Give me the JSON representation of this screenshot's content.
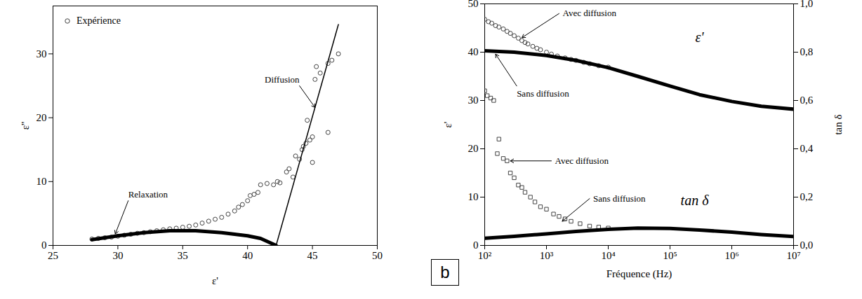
{
  "chart_data": [
    {
      "type": "scatter",
      "x_label": "ε'",
      "y_label": "ε''",
      "xlim": [
        25,
        50
      ],
      "xticks": [
        25,
        30,
        35,
        40,
        45,
        50
      ],
      "ylim": [
        0,
        37.5
      ],
      "yticks": [
        0,
        10,
        20,
        30
      ],
      "legend": "upper left",
      "series": [
        {
          "name": "Expérience",
          "type": "scatter",
          "marker": "circle",
          "color": "#444444",
          "x": [
            28,
            28.5,
            29,
            29.5,
            30,
            30.5,
            31,
            31.5,
            32,
            32.5,
            33,
            33.5,
            34,
            34.5,
            35,
            35.5,
            36,
            36.5,
            37,
            37.5,
            38,
            38.5,
            39,
            39.3,
            39.6,
            40,
            40.2,
            40.5,
            40.8,
            41,
            41.5,
            42,
            42.3,
            42.5,
            43,
            43.2,
            43.5,
            43.7,
            44,
            44.2,
            44.3,
            44.5,
            44.6,
            44.8,
            45,
            45,
            45.2,
            45.3,
            45.6,
            46.2,
            46.2,
            46.5,
            47
          ],
          "values": [
            1.0,
            1.1,
            1.2,
            1.3,
            1.45,
            1.6,
            1.75,
            1.9,
            2.0,
            2.15,
            2.3,
            2.45,
            2.6,
            2.7,
            2.85,
            3.0,
            3.2,
            3.5,
            3.8,
            4.1,
            4.4,
            4.9,
            5.4,
            6.0,
            6.4,
            7.0,
            7.8,
            8.0,
            8.3,
            9.5,
            9.7,
            9.5,
            10.0,
            9.8,
            11.5,
            12.0,
            10.7,
            14.0,
            13.5,
            15.0,
            15.5,
            16.0,
            19.6,
            16.5,
            13.0,
            17.0,
            26.0,
            28.0,
            27.0,
            17.7,
            28.5,
            29.0,
            30.0
          ]
        },
        {
          "name": "Relaxation",
          "type": "line",
          "line_style": "thick",
          "color": "#000000",
          "x": [
            28,
            30,
            32,
            34,
            36,
            38,
            40,
            41,
            42.2
          ],
          "values": [
            0.9,
            1.5,
            2.0,
            2.3,
            2.3,
            2.0,
            1.5,
            1.1,
            0
          ]
        },
        {
          "name": "Diffusion",
          "type": "line",
          "line_style": "solid",
          "color": "#000000",
          "x": [
            42.2,
            47
          ],
          "values": [
            0,
            34.6
          ]
        }
      ],
      "annotations": [
        {
          "text": "Relaxation",
          "x": 30.8,
          "y": 7.0,
          "arrow_to": [
            29.8,
            1.8
          ]
        },
        {
          "text": "Diffusion",
          "x": 44.0,
          "y": 25.0,
          "arrow_to": [
            45.2,
            21.6
          ]
        }
      ]
    },
    {
      "type": "scatter",
      "panel_label": "b",
      "x_label": "Fréquence (Hz)",
      "y_label": "ε'",
      "y2_label": "tan δ",
      "log": "x",
      "xlim": [
        100,
        10000000
      ],
      "xticks": [
        {
          "value": 100,
          "label": "10²"
        },
        {
          "value": 1000,
          "label": "10³"
        },
        {
          "value": 10000,
          "label": "10⁴"
        },
        {
          "value": 100000,
          "label": "10⁵"
        },
        {
          "value": 1000000,
          "label": "10⁶"
        },
        {
          "value": 10000000,
          "label": "10⁷"
        }
      ],
      "ylim": [
        0,
        50
      ],
      "yticks": [
        0,
        10,
        20,
        30,
        40,
        50
      ],
      "y2lim": [
        0,
        1.0
      ],
      "y2ticks": [
        {
          "value": 0,
          "label": "0,0"
        },
        {
          "value": 0.2,
          "label": "0,2"
        },
        {
          "value": 0.4,
          "label": "0,4"
        },
        {
          "value": 0.6,
          "label": "0,6"
        },
        {
          "value": 0.8,
          "label": "0,8"
        },
        {
          "value": 1.0,
          "label": "1,0"
        }
      ],
      "series": [
        {
          "name": "Avec diffusion",
          "type": "scatter",
          "marker": "circle",
          "color": "#444444",
          "x": [
            100,
            115,
            130,
            150,
            170,
            200,
            230,
            260,
            300,
            350,
            400,
            450,
            500,
            600,
            700,
            800,
            1000,
            1200,
            1500,
            2000,
            2500,
            3000,
            4000,
            5000,
            7000,
            10000
          ],
          "values": [
            46.8,
            46.3,
            46.0,
            45.5,
            45.2,
            44.8,
            44.3,
            43.9,
            43.4,
            42.9,
            42.4,
            42.0,
            41.7,
            41.2,
            40.8,
            40.5,
            40.0,
            39.6,
            39.2,
            38.8,
            38.5,
            38.3,
            37.9,
            37.6,
            37.2,
            36.9
          ]
        },
        {
          "name": "Sans diffusion",
          "type": "line",
          "line_style": "thick",
          "color": "#000000",
          "x": [
            100,
            300,
            1000,
            3000,
            10000,
            30000,
            100000,
            300000,
            1000000,
            3000000,
            10000000
          ],
          "values": [
            40.3,
            40.0,
            39.3,
            38.3,
            36.8,
            35.0,
            33.0,
            31.2,
            29.8,
            28.8,
            28.2
          ]
        },
        {
          "name": "Avec diffusion",
          "type": "scatter",
          "marker": "square",
          "color": "#444444",
          "axis": "y2",
          "x": [
            100,
            110,
            125,
            140,
            160,
            170,
            200,
            230,
            260,
            300,
            350,
            400,
            450,
            550,
            650,
            800,
            1000,
            1300,
            1600,
            2000,
            2500,
            3500,
            5000,
            7000,
            10000
          ],
          "values": [
            0.64,
            0.62,
            0.61,
            0.6,
            0.38,
            0.44,
            0.36,
            0.35,
            0.3,
            0.28,
            0.25,
            0.24,
            0.22,
            0.2,
            0.18,
            0.16,
            0.15,
            0.13,
            0.12,
            0.11,
            0.1,
            0.09,
            0.08,
            0.076,
            0.072
          ]
        },
        {
          "name": "Sans diffusion",
          "type": "line",
          "line_style": "thick",
          "color": "#000000",
          "axis": "y2",
          "x": [
            100,
            300,
            1000,
            3000,
            10000,
            30000,
            100000,
            300000,
            1000000,
            3000000,
            10000000
          ],
          "values": [
            0.03,
            0.038,
            0.048,
            0.058,
            0.067,
            0.072,
            0.07,
            0.064,
            0.055,
            0.045,
            0.037
          ]
        }
      ],
      "annotations": [
        {
          "text": "Avec diffusion",
          "x": 1600,
          "y": 48.0,
          "arrow_to": [
            400,
            43.0
          ]
        },
        {
          "text": "Sans diffusion",
          "x": 330,
          "y": 33.0,
          "arrow_to": [
            150,
            39.6
          ]
        },
        {
          "text": "Avec diffusion",
          "x": 1200,
          "y": 17.5,
          "arrow_to": [
            260,
            17.5
          ]
        },
        {
          "text": "Sans diffusion",
          "x": 5000,
          "y": 9.7,
          "arrow_to": [
            1800,
            5.0
          ]
        },
        {
          "text": "ε'",
          "x": 300000,
          "y": 43
        },
        {
          "text": "tan δ",
          "x": 250000,
          "y": 9.2
        }
      ]
    }
  ]
}
